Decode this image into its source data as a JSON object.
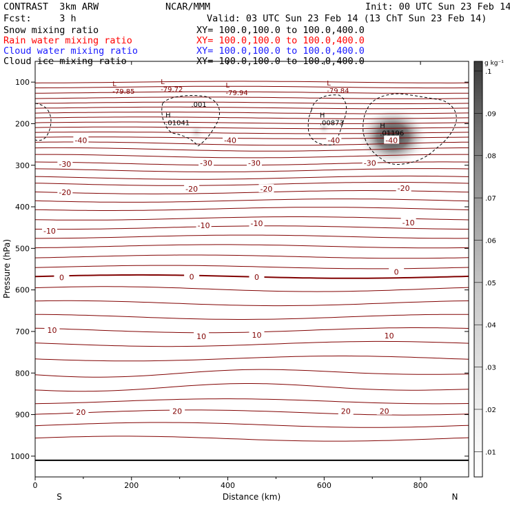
{
  "header": {
    "product": "CONTRAST  3km ARW",
    "forecast": "Fcst:     3 h",
    "center": "NCAR/MMM",
    "init": "Init: 00 UTC Sun 23 Feb 14",
    "valid": "Valid: 03 UTC Sun 23 Feb 14 (13 ChT Sun 23 Feb 14)"
  },
  "fields": [
    {
      "name": "Snow mixing ratio",
      "xy": "XY= 100.0,100.0 to 100.0,400.0",
      "color": "#000000"
    },
    {
      "name": "Rain water mixing ratio",
      "xy": "XY= 100.0,100.0 to 100.0,400.0",
      "color": "#ff0000"
    },
    {
      "name": "Cloud water mixing ratio",
      "xy": "XY= 100.0,100.0 to 100.0,400.0",
      "color": "#1a1aff"
    },
    {
      "name": "Cloud ice mixing ratio",
      "xy": "XY= 100.0,100.0 to 100.0,400.0",
      "color": "#000000"
    }
  ],
  "colors": {
    "contour": "#800000",
    "dashed": "#000000",
    "shade": "#333333"
  },
  "chart_data": {
    "type": "cross-section",
    "xlabel": "Distance (km)",
    "ylabel": "Pressure (hPa)",
    "xlim": [
      0,
      900
    ],
    "ylim": [
      1050,
      50
    ],
    "x_ticks": [
      "0",
      "200",
      "400",
      "600",
      "800"
    ],
    "x_tick_values": [
      0,
      200,
      400,
      600,
      800
    ],
    "y_ticks": [
      "100",
      "200",
      "300",
      "400",
      "500",
      "600",
      "700",
      "800",
      "900",
      "1000"
    ],
    "y_tick_values": [
      100,
      200,
      300,
      400,
      500,
      600,
      700,
      800,
      900,
      1000
    ],
    "end_labels": {
      "left": "S",
      "right": "N"
    },
    "colorbar": {
      "unit": "g kg⁻¹",
      "labels": [
        ".01",
        ".02",
        ".03",
        ".04",
        ".05",
        ".06",
        ".07",
        ".08",
        ".09",
        ".1"
      ],
      "levels": [
        0.01,
        0.02,
        0.03,
        0.04,
        0.05,
        0.06,
        0.07,
        0.08,
        0.09,
        0.1
      ]
    },
    "temperature_labels": [
      {
        "text": "-40",
        "x": 95,
        "p": 240
      },
      {
        "text": "-40",
        "x": 405,
        "p": 240
      },
      {
        "text": "-40",
        "x": 620,
        "p": 240
      },
      {
        "text": "-40",
        "x": 740,
        "p": 240
      },
      {
        "text": "-30",
        "x": 62,
        "p": 297
      },
      {
        "text": "-30",
        "x": 355,
        "p": 295
      },
      {
        "text": "-30",
        "x": 455,
        "p": 295
      },
      {
        "text": "-30",
        "x": 695,
        "p": 295
      },
      {
        "text": "-20",
        "x": 62,
        "p": 365
      },
      {
        "text": "-20",
        "x": 325,
        "p": 357
      },
      {
        "text": "-20",
        "x": 480,
        "p": 357
      },
      {
        "text": "-20",
        "x": 765,
        "p": 355
      },
      {
        "text": "-10",
        "x": 30,
        "p": 458
      },
      {
        "text": "-10",
        "x": 350,
        "p": 445
      },
      {
        "text": "-10",
        "x": 460,
        "p": 440
      },
      {
        "text": "-10",
        "x": 775,
        "p": 438
      },
      {
        "text": "0",
        "x": 55,
        "p": 570
      },
      {
        "text": "0",
        "x": 325,
        "p": 568
      },
      {
        "text": "0",
        "x": 460,
        "p": 569
      },
      {
        "text": "0",
        "x": 750,
        "p": 557
      },
      {
        "text": "10",
        "x": 35,
        "p": 697
      },
      {
        "text": "10",
        "x": 345,
        "p": 712
      },
      {
        "text": "10",
        "x": 460,
        "p": 708
      },
      {
        "text": "10",
        "x": 735,
        "p": 710
      },
      {
        "text": "20",
        "x": 95,
        "p": 894
      },
      {
        "text": "20",
        "x": 295,
        "p": 892
      },
      {
        "text": "20",
        "x": 645,
        "p": 892
      },
      {
        "text": "20",
        "x": 725,
        "p": 892
      }
    ],
    "extrema": [
      {
        "kind": "L",
        "value": "-79.85",
        "x": 175,
        "p": 110
      },
      {
        "kind": "L",
        "value": "-79.72",
        "x": 275,
        "p": 105
      },
      {
        "kind": "L",
        "value": "-79.94",
        "x": 410,
        "p": 113
      },
      {
        "kind": "L",
        "value": "-79.84",
        "x": 620,
        "p": 108
      },
      {
        "kind": "H",
        "value": ".01041",
        "x": 285,
        "p": 185
      },
      {
        "kind": "H",
        "value": ".00873",
        "x": 605,
        "p": 185
      },
      {
        "kind": "H",
        "value": ".01196",
        "x": 730,
        "p": 210
      }
    ],
    "contour_label_001": {
      "text": ".001",
      "x": 340,
      "p": 153
    },
    "max_mixing_ratio_g_per_kg": 0.1
  }
}
